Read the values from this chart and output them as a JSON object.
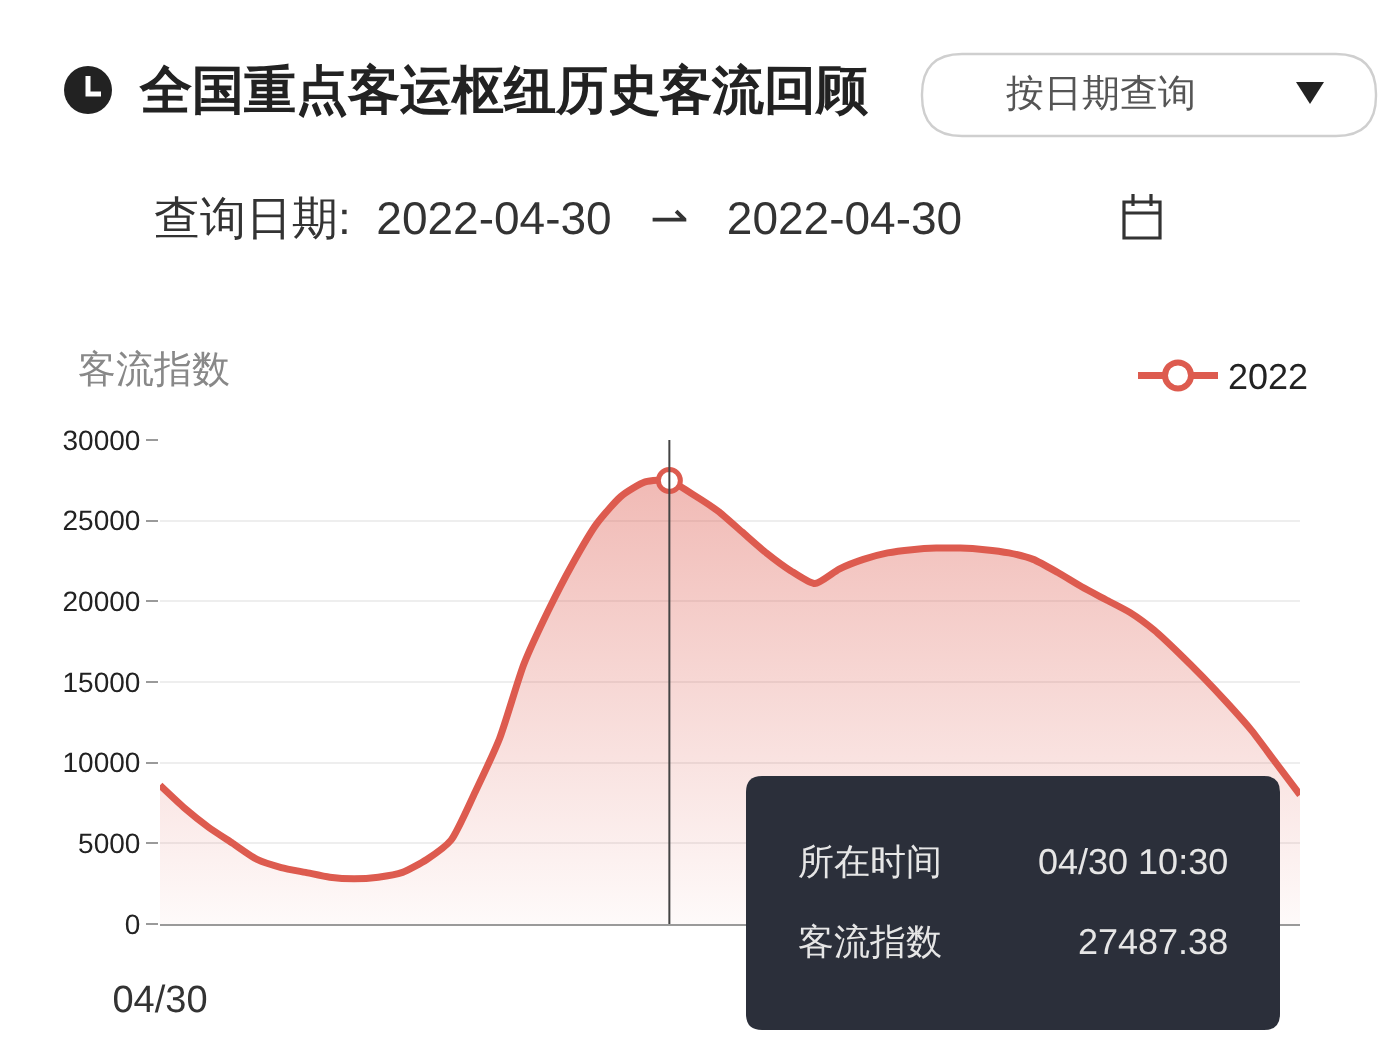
{
  "chart_data": {
    "type": "area",
    "title": "全国重点客运枢纽历史客流回顾",
    "subtitle": "查询日期:  2022-04-30   ⇀   2022-04-30",
    "ylabel": "客流指数",
    "categories": [
      "04/30",
      null,
      null,
      null,
      null,
      null,
      null,
      null,
      null,
      null,
      null,
      null,
      null,
      null,
      null,
      null,
      null,
      null,
      null,
      null,
      null,
      null,
      null,
      null,
      null,
      null,
      null,
      null,
      null,
      null,
      null,
      null,
      null,
      null,
      null,
      null,
      null,
      null,
      null,
      null,
      null,
      null,
      null,
      null,
      null,
      null,
      null,
      null
    ],
    "series": [
      {
        "name": "2022",
        "color": "#dd5b4f",
        "values": [
          8600,
          7200,
          6000,
          5000,
          4000,
          3500,
          3200,
          2900,
          2800,
          2900,
          3200,
          4000,
          5200,
          8200,
          11500,
          16100,
          19400,
          22300,
          24800,
          26500,
          27400,
          27487.38,
          26600,
          25600,
          24300,
          23000,
          21900,
          21100,
          22000,
          22600,
          23000,
          23200,
          23300,
          23300,
          23200,
          23000,
          22600,
          21800,
          20900,
          20100,
          19300,
          18200,
          16800,
          15300,
          13700,
          12000,
          10000,
          8000
        ]
      },
      {
        "type": "scatter",
        "marker": "circle",
        "color": "#dd5b4f",
        "values": [
          null,
          null,
          null,
          null,
          null,
          null,
          null,
          null,
          null,
          null,
          null,
          null,
          null,
          null,
          null,
          null,
          null,
          null,
          null,
          null,
          null,
          27487.38,
          null,
          null,
          null,
          null,
          null,
          null,
          null,
          null,
          null,
          null,
          null,
          null,
          null,
          null,
          null,
          null,
          null,
          null,
          null,
          null,
          null,
          null,
          null,
          null,
          null,
          null
        ]
      }
    ],
    "ylim": [
      0,
      30000
    ],
    "yticks": [
      0,
      5000,
      10000,
      15000,
      20000,
      25000,
      30000
    ],
    "grid": "y",
    "legend": "top right",
    "annotations": [
      "按日期查询",
      "所在时间 04/30 10:30",
      "客流指数 27487.38"
    ]
  }
}
